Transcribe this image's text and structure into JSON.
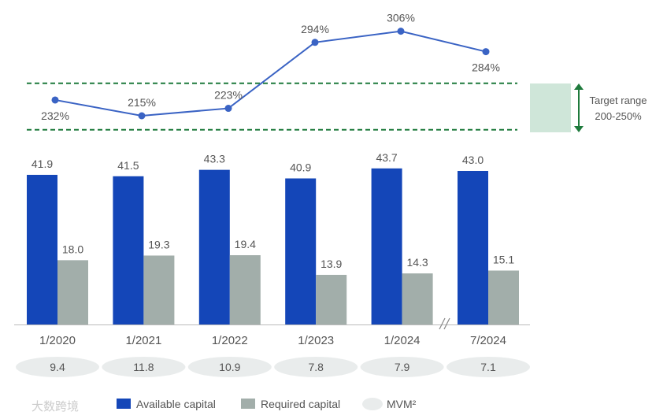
{
  "chart_data": {
    "type": "bar",
    "categories": [
      "1/2020",
      "1/2021",
      "1/2022",
      "1/2023",
      "1/2024",
      "7/2024"
    ],
    "series": [
      {
        "name": "Available capital",
        "color": "#1446b8",
        "values": [
          41.9,
          41.5,
          43.3,
          40.9,
          43.7,
          43.0
        ]
      },
      {
        "name": "Required capital",
        "color": "#a2aeaa",
        "values": [
          18.0,
          19.3,
          19.4,
          13.9,
          14.3,
          15.1
        ]
      }
    ],
    "ratio_line": {
      "color": "#3a63c4",
      "values": [
        232,
        215,
        223,
        294,
        306,
        284
      ],
      "labels": [
        "232%",
        "215%",
        "223%",
        "294%",
        "306%",
        "284%"
      ]
    },
    "mvm": {
      "name": "MVM²",
      "color": "#e9ecec",
      "values": [
        "9.4",
        "11.8",
        "10.9",
        "7.8",
        "7.9",
        "7.1"
      ]
    },
    "target_range": {
      "label_line1": "Target range",
      "label_line2": "200-250%",
      "low": 200,
      "high": 250,
      "color": "#1e7a3c",
      "fill": "#cfe6d9"
    },
    "legend": [
      "Available capital",
      "Required capital",
      "MVM²"
    ],
    "legend_position": "bottom",
    "watermark": "大数跨境"
  }
}
